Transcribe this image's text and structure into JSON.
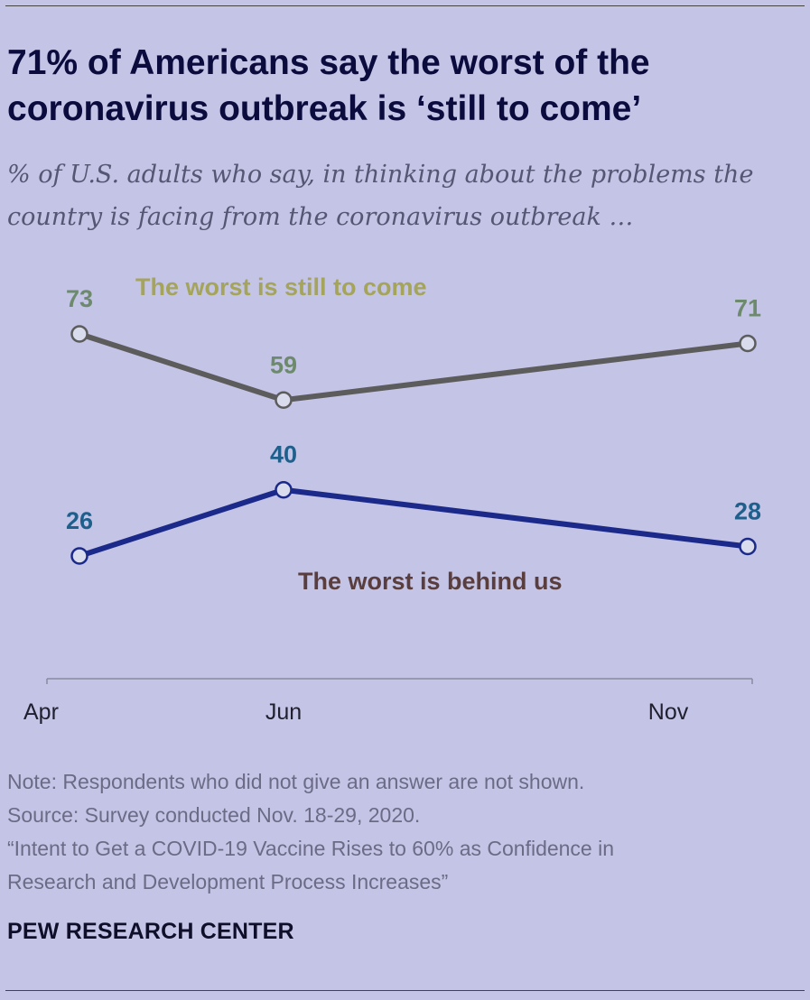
{
  "header": {
    "title": "71% of Americans say the worst of the coronavirus outbreak is ‘still to come’",
    "subtitle": "% of U.S. adults who say, in thinking about the problems the country is facing from the coronavirus outbreak …"
  },
  "chart_data": {
    "type": "line",
    "categories": [
      "Apr",
      "Jun",
      "Nov"
    ],
    "series": [
      {
        "name": "The worst is still to come",
        "values": [
          73,
          59,
          71
        ],
        "color": "#5c5c5c"
      },
      {
        "name": "The worst is behind us",
        "values": [
          26,
          40,
          28
        ],
        "color": "#1b2a8a"
      }
    ],
    "xlabel": "",
    "ylabel": "",
    "grid": false,
    "legend": "inline"
  },
  "colors": {
    "background": "#c4c4e6",
    "still_to_come_label": "#a4a45a",
    "behind_us_label": "#5a3e3e",
    "point_label_top": "#6d8a6d",
    "point_label_bottom": "#1e5f8c"
  },
  "footer": {
    "note": "Note: Respondents who did not give an answer are not shown.",
    "source": "Source: Survey conducted Nov. 18-29, 2020.",
    "report_line1": "“Intent to Get a COVID-19 Vaccine Rises to 60% as Confidence in",
    "report_line2": "Research and Development Process Increases”",
    "brand": "PEW RESEARCH CENTER"
  }
}
